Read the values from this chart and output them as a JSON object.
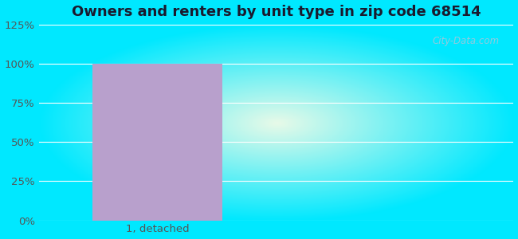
{
  "title": "Owners and renters by unit type in zip code 68514",
  "categories": [
    "1, detached"
  ],
  "values": [
    100
  ],
  "bar_color": "#b8a0cc",
  "ylim": [
    0,
    125
  ],
  "yticks": [
    0,
    25,
    50,
    75,
    100,
    125
  ],
  "ytick_labels": [
    "0%",
    "25%",
    "50%",
    "75%",
    "100%",
    "125%"
  ],
  "title_fontsize": 13,
  "tick_fontsize": 9.5,
  "bg_outer_color": "#00e8ff",
  "watermark": "City-Data.com",
  "bar_width": 0.55
}
